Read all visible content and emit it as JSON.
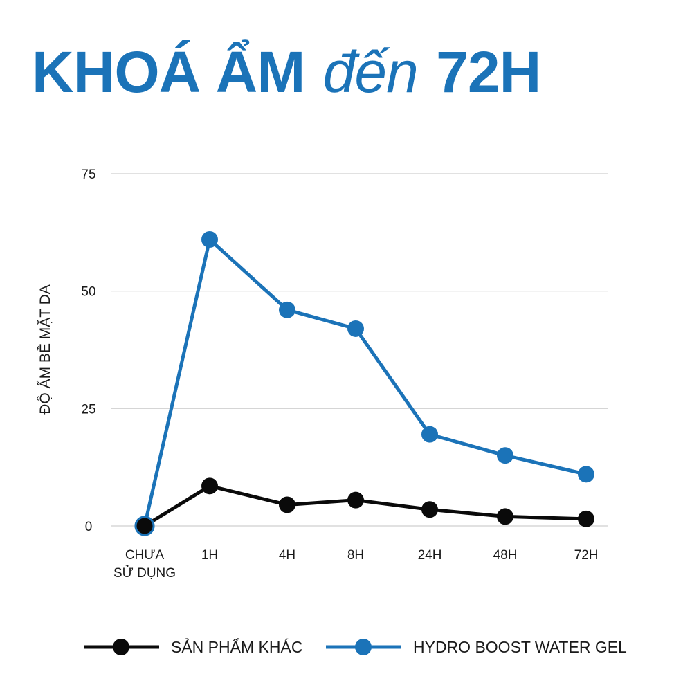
{
  "header": {
    "title_part1": "KHOÁ ẨM",
    "title_part2": "đến",
    "title_part3": "72H"
  },
  "colors": {
    "brand_blue": "#1b73b8",
    "other_black": "#0a0a0a",
    "grid": "#cfcfcf"
  },
  "chart_data": {
    "type": "line",
    "categories": [
      [
        "CHƯA",
        "SỬ DỤNG"
      ],
      [
        "1H"
      ],
      [
        "4H"
      ],
      [
        "8H"
      ],
      [
        "24H"
      ],
      [
        "48H"
      ],
      [
        "72H"
      ]
    ],
    "ylabel": "ĐỘ ẨM BỀ MẶT DA",
    "xlabel": "",
    "ylim": [
      0,
      75
    ],
    "yticks": [
      0,
      25,
      50,
      75
    ],
    "grid": true,
    "legend_placement": "bottom",
    "series": [
      {
        "name": "SẢN PHẨM KHÁC",
        "color": "#0a0a0a",
        "values": [
          0,
          8.5,
          4.5,
          5.5,
          3.5,
          2,
          1.5
        ]
      },
      {
        "name": "HYDRO BOOST WATER GEL",
        "color": "#1b73b8",
        "values": [
          0,
          61,
          46,
          42,
          19.5,
          15,
          11
        ]
      }
    ]
  }
}
